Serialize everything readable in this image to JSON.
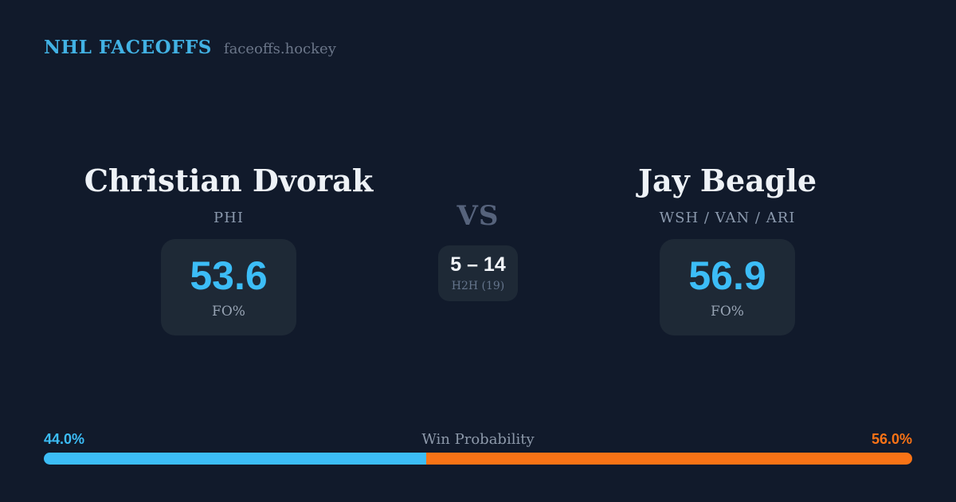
{
  "header": {
    "brand": "NHL FACEOFFS",
    "site": "faceoffs.hockey"
  },
  "matchup": {
    "player_left": {
      "name": "Christian Dvorak",
      "teams": "PHI",
      "stat_value": "53.6",
      "stat_label": "FO%"
    },
    "player_right": {
      "name": "Jay Beagle",
      "teams": "WSH / VAN / ARI",
      "stat_value": "56.9",
      "stat_label": "FO%"
    },
    "vs_label": "VS",
    "h2h": {
      "record": "5 – 14",
      "label": "H2H (19)"
    }
  },
  "win_probability": {
    "title": "Win Probability",
    "left_pct_label": "44.0%",
    "right_pct_label": "56.0%",
    "left_value": 44.0,
    "right_value": 56.0
  },
  "colors": {
    "background": "#111a2b",
    "card": "#1e2936",
    "accent_blue": "#3cbdf7",
    "accent_orange": "#f97316",
    "brand_blue": "#42b2e4",
    "name_text": "#eef2f7",
    "muted_text": "#8b99ad"
  }
}
